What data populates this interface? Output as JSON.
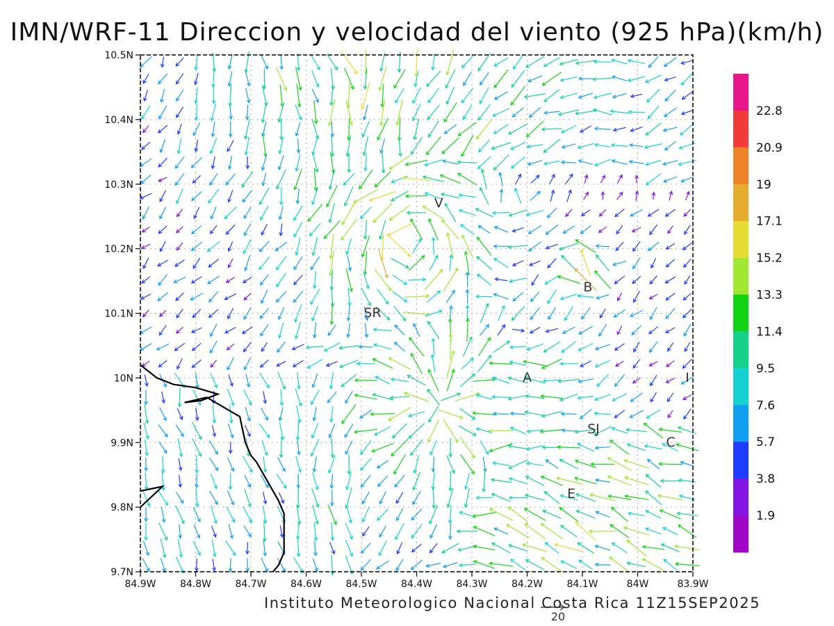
{
  "title": "IMN/WRF-11 Direccion y velocidad del viento (925 hPa)(km/h)",
  "footer": "Instituto Meteorologico Nacional Costa Rica 11Z15SEP2025",
  "reference_vector": {
    "value": "20"
  },
  "axes": {
    "x_ticks": [
      "84.9W",
      "84.8W",
      "84.7W",
      "84.6W",
      "84.5W",
      "84.4W",
      "84.3W",
      "84.2W",
      "84.1W",
      "84W",
      "83.9W"
    ],
    "y_ticks": [
      "10.5N",
      "10.4N",
      "10.3N",
      "10.2N",
      "10.1N",
      "10N",
      "9.9N",
      "9.8N",
      "9.7N"
    ],
    "lon_range": [
      -84.9,
      -83.9
    ],
    "lat_range": [
      9.7,
      10.5
    ],
    "grid": "dotted"
  },
  "colorbar": {
    "labels": [
      "22.8",
      "20.9",
      "19",
      "17.1",
      "15.2",
      "13.3",
      "11.4",
      "9.5",
      "7.6",
      "5.7",
      "3.8",
      "1.9"
    ],
    "colors": [
      "#e8188c",
      "#f23c3c",
      "#ee8228",
      "#e6ac2e",
      "#e6dc32",
      "#a0e632",
      "#14d214",
      "#14d28c",
      "#14d2d2",
      "#14a0f0",
      "#1e3cff",
      "#8214e6",
      "#a008c8"
    ]
  },
  "places": [
    {
      "label": "V",
      "lon": -84.36,
      "lat": 10.27
    },
    {
      "label": "B",
      "lon": -84.09,
      "lat": 10.14
    },
    {
      "label": "SR",
      "lon": -84.48,
      "lat": 10.1
    },
    {
      "label": "A",
      "lon": -84.2,
      "lat": 10.0
    },
    {
      "label": "I",
      "lon": -83.91,
      "lat": 10.0
    },
    {
      "label": "SJ",
      "lon": -84.08,
      "lat": 9.92
    },
    {
      "label": "C",
      "lon": -83.94,
      "lat": 9.9
    },
    {
      "label": "E",
      "lon": -84.12,
      "lat": 9.82
    }
  ],
  "coastline": [
    [
      -84.9,
      10.02
    ],
    [
      -84.87,
      10.0
    ],
    [
      -84.84,
      9.99
    ],
    [
      -84.8,
      9.985
    ],
    [
      -84.78,
      9.98
    ],
    [
      -84.76,
      9.975
    ],
    [
      -84.79,
      9.965
    ],
    [
      -84.82,
      9.962
    ],
    [
      -84.78,
      9.97
    ],
    [
      -84.74,
      9.95
    ],
    [
      -84.72,
      9.94
    ],
    [
      -84.71,
      9.9
    ],
    [
      -84.7,
      9.88
    ],
    [
      -84.69,
      9.87
    ],
    [
      -84.67,
      9.84
    ],
    [
      -84.65,
      9.81
    ],
    [
      -84.64,
      9.79
    ],
    [
      -84.64,
      9.75
    ],
    [
      -84.64,
      9.73
    ],
    [
      -84.65,
      9.71
    ],
    [
      -84.66,
      9.7
    ]
  ],
  "coastline_island": [
    [
      -84.9,
      9.825
    ],
    [
      -84.86,
      9.832
    ],
    [
      -84.9,
      9.8
    ]
  ],
  "wind_features": [
    {
      "lon": -84.48,
      "lat": 10.52,
      "mode": "sink",
      "r": 0.22,
      "speed": 13,
      "base": [
        0.8,
        0.2
      ]
    },
    {
      "lon": -84.42,
      "lat": 10.22,
      "mode": "vortex",
      "r": 0.14,
      "speed": 14,
      "base": [
        -0.3,
        -0.1
      ]
    },
    {
      "lon": -84.36,
      "lat": 9.96,
      "mode": "source",
      "r": 0.15,
      "speed": 12,
      "base": [
        -1,
        0.4
      ]
    },
    {
      "lon": -84.23,
      "lat": 9.95,
      "mode": "west",
      "r": 0.1,
      "speed": 12,
      "base": [
        -1,
        0.1
      ]
    },
    {
      "lon": -84.15,
      "lat": 9.76,
      "mode": "west",
      "r": 0.14,
      "speed": 13,
      "base": [
        -1,
        0.5
      ]
    },
    {
      "lon": -84.09,
      "lat": 10.17,
      "mode": "north",
      "r": 0.03,
      "speed": 19,
      "base": [
        -0.3,
        1
      ]
    }
  ]
}
